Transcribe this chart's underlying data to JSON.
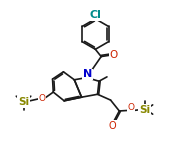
{
  "bg_color": "#ffffff",
  "line_color": "#1a1a1a",
  "cl_color": "#008b8b",
  "n_color": "#0000cd",
  "o_color": "#cc2200",
  "si_color": "#888800",
  "lw": 1.2,
  "fs": 6.5,
  "fig_w": 1.82,
  "fig_h": 1.61,
  "dpi": 100,
  "xlim": [
    -1,
    11
  ],
  "ylim": [
    -1,
    10
  ]
}
